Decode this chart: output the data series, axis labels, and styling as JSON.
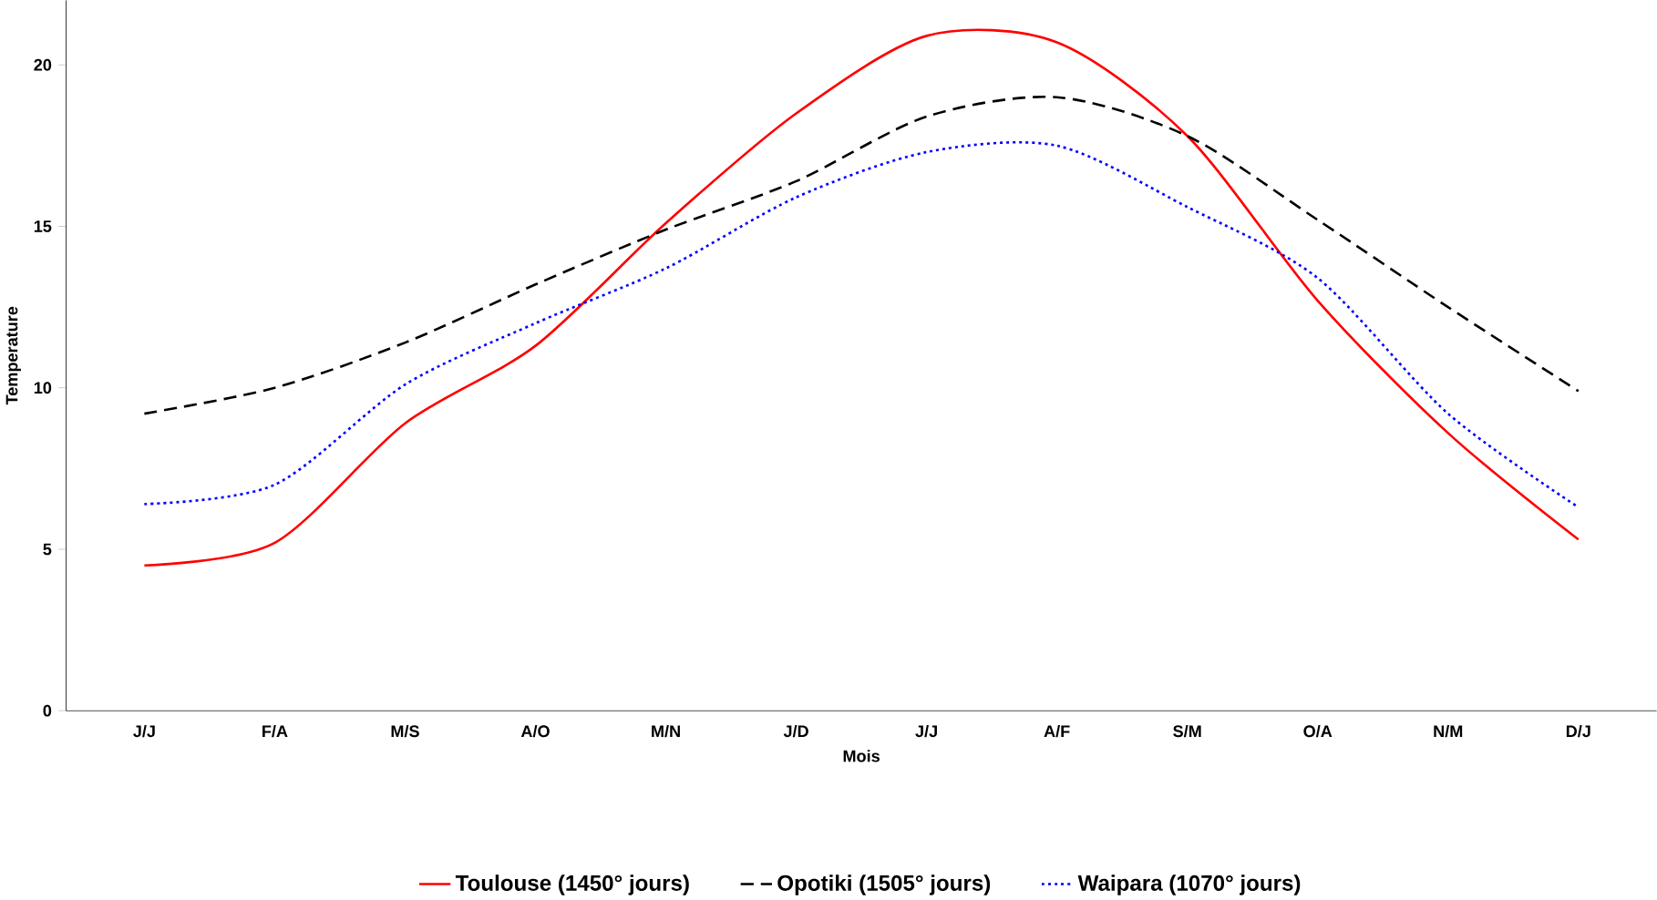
{
  "chart_data": {
    "type": "line",
    "xlabel": "Mois",
    "ylabel": "Temperature",
    "categories": [
      "J/J",
      "F/A",
      "M/S",
      "A/O",
      "M/N",
      "J/D",
      "J/J",
      "A/F",
      "S/M",
      "O/A",
      "N/M",
      "D/J"
    ],
    "series": [
      {
        "name": "Toulouse (1450° jours)",
        "color": "#ff0000",
        "line_style": "solid",
        "values": [
          4.5,
          5.2,
          8.9,
          11.3,
          15.1,
          18.5,
          20.9,
          20.7,
          17.8,
          12.7,
          8.6,
          5.3
        ]
      },
      {
        "name": "Opotiki (1505° jours)",
        "color": "#000000",
        "line_style": "dashed",
        "values": [
          9.2,
          10.0,
          11.4,
          13.2,
          14.9,
          16.4,
          18.4,
          19.0,
          17.8,
          15.2,
          12.5,
          9.9
        ]
      },
      {
        "name": "Waipara (1070° jours)",
        "color": "#0000ff",
        "line_style": "dotted",
        "values": [
          6.4,
          7.0,
          10.1,
          12.0,
          13.7,
          15.9,
          17.3,
          17.5,
          15.6,
          13.4,
          9.2,
          6.3
        ]
      }
    ],
    "ylim": [
      0,
      22
    ],
    "yticks": [
      0,
      5,
      10,
      15,
      20
    ],
    "grid": false,
    "legend": "bottom",
    "marker": "none"
  }
}
